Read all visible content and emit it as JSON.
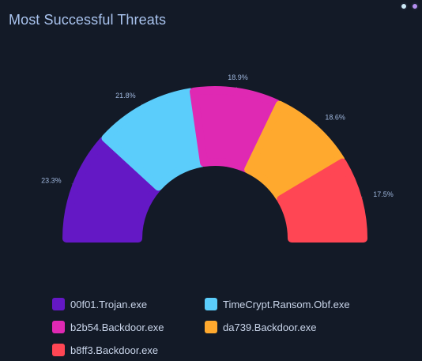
{
  "title": "Most Successful Threats",
  "window_controls": [
    {
      "name": "light-blue-dot",
      "color": "#cdeaf7"
    },
    {
      "name": "purple-dot",
      "color": "#b48ef0"
    }
  ],
  "chart_data": {
    "type": "pie",
    "variant": "semi-donut",
    "series": [
      {
        "name": "00f01.Trojan.exe",
        "value": 23.3,
        "label": "23.3%",
        "color": "#6418c5"
      },
      {
        "name": "TimeCrypt.Ransom.Obf.exe",
        "value": 21.8,
        "label": "21.8%",
        "color": "#5bcdfb"
      },
      {
        "name": "b2b54.Backdoor.exe",
        "value": 18.9,
        "label": "18.9%",
        "color": "#df29b3"
      },
      {
        "name": "da739.Backdoor.exe",
        "value": 18.6,
        "label": "18.6%",
        "color": "#ffa92e"
      },
      {
        "name": "b8ff3.Backdoor.exe",
        "value": 17.5,
        "label": "17.5%",
        "color": "#ff4654"
      }
    ],
    "legend_position": "bottom"
  }
}
